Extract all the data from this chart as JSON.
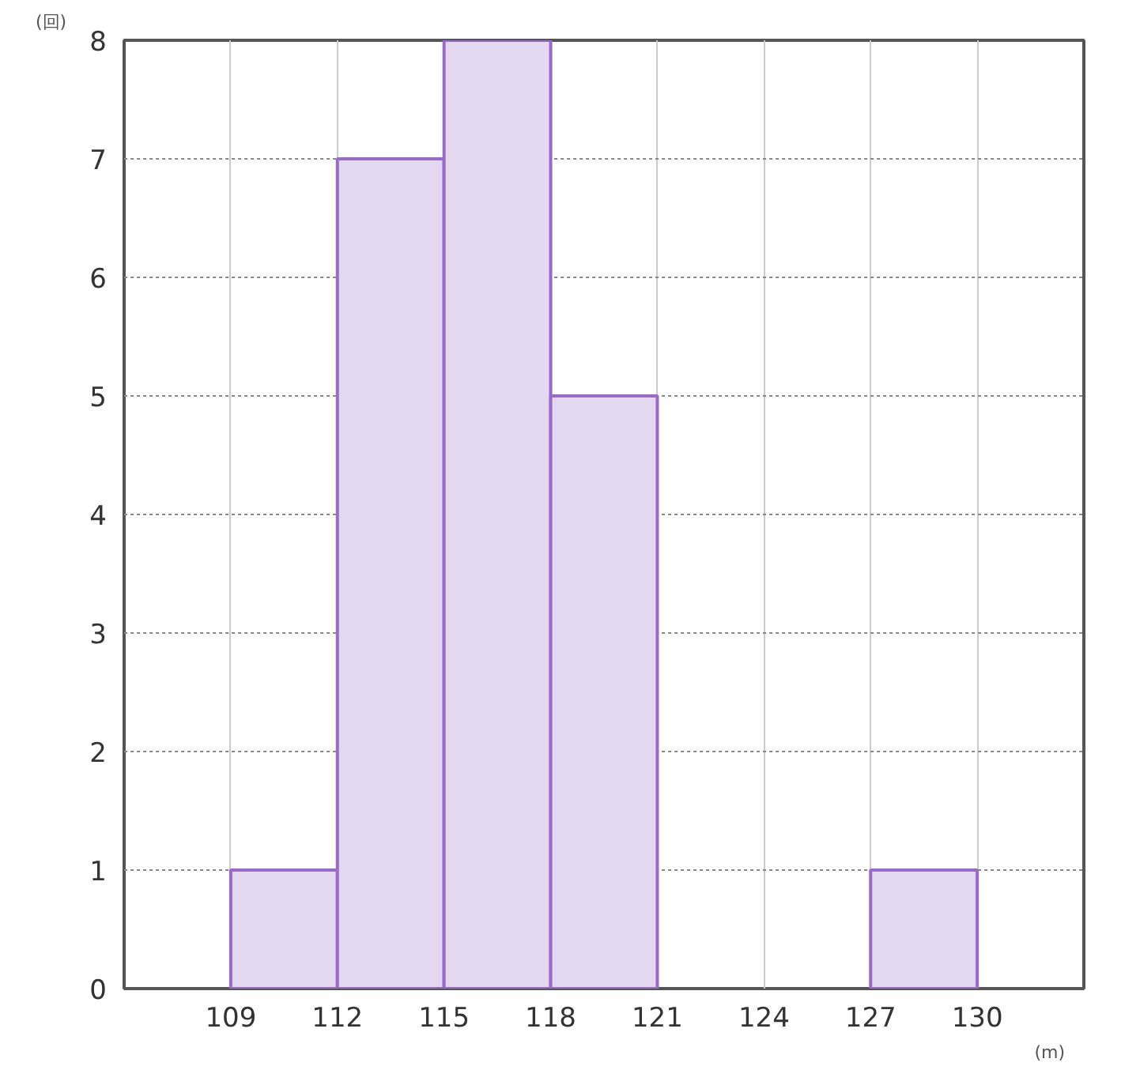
{
  "chart_data": {
    "type": "histogram",
    "bins": [
      109,
      112,
      115,
      118,
      121,
      124,
      127,
      130
    ],
    "values": [
      1,
      7,
      8,
      5,
      0,
      0,
      1
    ],
    "color": "#e3d8f0",
    "xlim": [
      106,
      133
    ],
    "xticks": [
      109,
      112,
      115,
      118,
      121,
      124,
      127,
      130
    ],
    "ylim": [
      0,
      8
    ],
    "yticks": [
      0,
      1,
      2,
      3,
      4,
      5,
      6,
      7,
      8
    ],
    "xlabel": "(m)",
    "ylabel": "(回)",
    "grid": true
  }
}
